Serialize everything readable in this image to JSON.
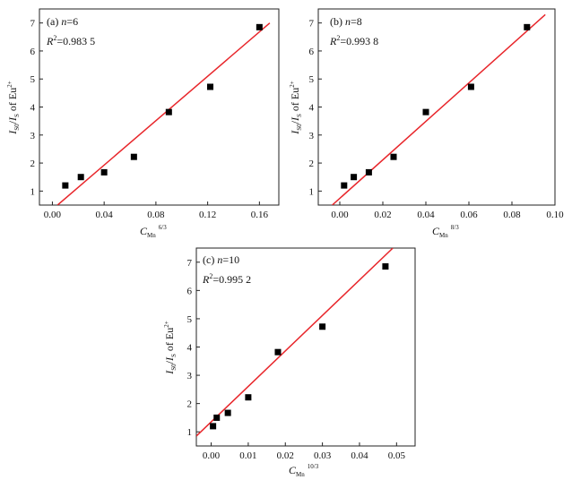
{
  "chart_data": [
    {
      "type": "scatter",
      "panel_label": "(a) ",
      "n_label": "n",
      "n_value": "=6",
      "r2_label": "R",
      "r2_value": "=0.983 5",
      "xlabel": "C",
      "xlabel_sub": "Mn",
      "xlabel_sup": "6/3",
      "ylabel": "I",
      "ylabel_sub1": "S0",
      "ylabel_mid": "/",
      "ylabel_i2": "I",
      "ylabel_sub2": "S",
      "ylabel_tail": " of Eu",
      "ylabel_sup": "2+",
      "xlim": [
        -0.01,
        0.175
      ],
      "ylim": [
        0.5,
        7.5
      ],
      "xticks": [
        "0.00",
        "0.04",
        "0.08",
        "0.12",
        "0.16"
      ],
      "xtick_values": [
        0.0,
        0.04,
        0.08,
        0.12,
        0.16
      ],
      "yticks": [
        "1",
        "2",
        "3",
        "4",
        "5",
        "6",
        "7"
      ],
      "ytick_values": [
        1,
        2,
        3,
        4,
        5,
        6,
        7
      ],
      "points": [
        {
          "x": 0.01,
          "y": 1.2
        },
        {
          "x": 0.022,
          "y": 1.5
        },
        {
          "x": 0.04,
          "y": 1.67
        },
        {
          "x": 0.063,
          "y": 2.22
        },
        {
          "x": 0.09,
          "y": 3.82
        },
        {
          "x": 0.122,
          "y": 4.72
        },
        {
          "x": 0.16,
          "y": 6.85
        }
      ],
      "fit": {
        "x0": 0.004,
        "y0": 0.5,
        "x1": 0.168,
        "y1": 7.0
      },
      "marker_color": "#000000",
      "line_color": "#e8262b"
    },
    {
      "type": "scatter",
      "panel_label": "(b) ",
      "n_label": "n",
      "n_value": "=8",
      "r2_label": "R",
      "r2_value": "=0.993 8",
      "xlabel": "C",
      "xlabel_sub": "Mn",
      "xlabel_sup": "8/3",
      "ylabel": "I",
      "ylabel_sub1": "S0",
      "ylabel_mid": "/",
      "ylabel_i2": "I",
      "ylabel_sub2": "S",
      "ylabel_tail": " of Eu",
      "ylabel_sup": "2+",
      "xlim": [
        -0.01,
        0.1
      ],
      "ylim": [
        0.5,
        7.5
      ],
      "xticks": [
        "0.00",
        "0.02",
        "0.04",
        "0.06",
        "0.08",
        "0.10"
      ],
      "xtick_values": [
        0.0,
        0.02,
        0.04,
        0.06,
        0.08,
        0.1
      ],
      "yticks": [
        "1",
        "2",
        "3",
        "4",
        "5",
        "6",
        "7"
      ],
      "ytick_values": [
        1,
        2,
        3,
        4,
        5,
        6,
        7
      ],
      "points": [
        {
          "x": 0.002,
          "y": 1.2
        },
        {
          "x": 0.0065,
          "y": 1.5
        },
        {
          "x": 0.0135,
          "y": 1.67
        },
        {
          "x": 0.025,
          "y": 2.22
        },
        {
          "x": 0.04,
          "y": 3.82
        },
        {
          "x": 0.061,
          "y": 4.72
        },
        {
          "x": 0.087,
          "y": 6.85
        }
      ],
      "fit": {
        "x0": -0.0035,
        "y0": 0.5,
        "x1": 0.0955,
        "y1": 7.3
      },
      "marker_color": "#000000",
      "line_color": "#e8262b"
    },
    {
      "type": "scatter",
      "panel_label": "(c) ",
      "n_label": "n",
      "n_value": "=10",
      "r2_label": "R",
      "r2_value": "=0.995 2",
      "xlabel": "C",
      "xlabel_sub": "Mn",
      "xlabel_sup": "10/3",
      "ylabel": "I",
      "ylabel_sub1": "S0",
      "ylabel_mid": "/",
      "ylabel_i2": "I",
      "ylabel_sub2": "S",
      "ylabel_tail": " of Eu",
      "ylabel_sup": "2+",
      "xlim": [
        -0.004,
        0.055
      ],
      "ylim": [
        0.5,
        7.5
      ],
      "xticks": [
        "0.00",
        "0.01",
        "0.02",
        "0.03",
        "0.04",
        "0.05"
      ],
      "xtick_values": [
        0.0,
        0.01,
        0.02,
        0.03,
        0.04,
        0.05
      ],
      "yticks": [
        "1",
        "2",
        "3",
        "4",
        "5",
        "6",
        "7"
      ],
      "ytick_values": [
        1,
        2,
        3,
        4,
        5,
        6,
        7
      ],
      "points": [
        {
          "x": 0.0005,
          "y": 1.2
        },
        {
          "x": 0.0015,
          "y": 1.5
        },
        {
          "x": 0.0045,
          "y": 1.67
        },
        {
          "x": 0.01,
          "y": 2.22
        },
        {
          "x": 0.018,
          "y": 3.82
        },
        {
          "x": 0.03,
          "y": 4.72
        },
        {
          "x": 0.047,
          "y": 6.85
        }
      ],
      "fit": {
        "x0": -0.004,
        "y0": 0.85,
        "x1": 0.049,
        "y1": 7.5
      },
      "marker_color": "#000000",
      "line_color": "#e8262b"
    }
  ]
}
